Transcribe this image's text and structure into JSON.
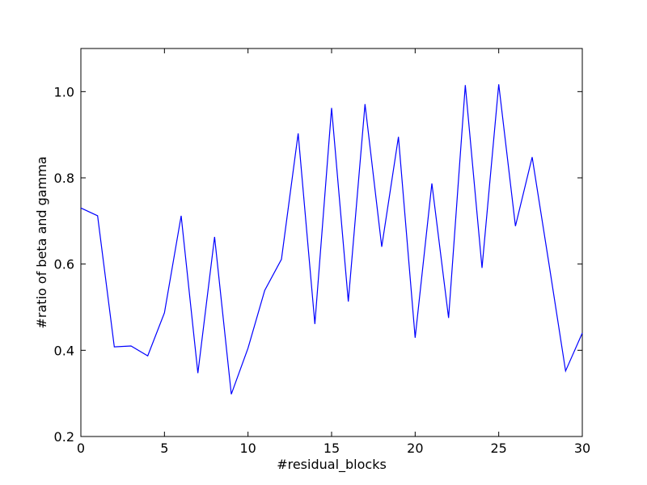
{
  "chart_data": {
    "type": "line",
    "title": "",
    "xlabel": "#residual_blocks",
    "ylabel": "#ratio of beta and gamma",
    "xlim": [
      0,
      30
    ],
    "ylim": [
      0.2,
      1.1
    ],
    "xticks": [
      0,
      5,
      10,
      15,
      20,
      25,
      30
    ],
    "xtick_labels": [
      "0",
      "5",
      "10",
      "15",
      "20",
      "25",
      "30"
    ],
    "yticks": [
      0.2,
      0.4,
      0.6,
      0.8,
      1.0
    ],
    "ytick_labels": [
      "0.2",
      "0.4",
      "0.6",
      "0.8",
      "1.0"
    ],
    "grid": false,
    "legend": "none",
    "series": [
      {
        "color": "#0000ff",
        "x": [
          0,
          1,
          2,
          3,
          4,
          5,
          6,
          7,
          8,
          9,
          10,
          11,
          12,
          13,
          14,
          15,
          16,
          17,
          18,
          19,
          20,
          21,
          22,
          23,
          24,
          25,
          26,
          27,
          28,
          29,
          30
        ],
        "y": [
          0.73,
          0.712,
          0.408,
          0.41,
          0.387,
          0.487,
          0.712,
          0.347,
          0.663,
          0.298,
          0.405,
          0.539,
          0.611,
          0.903,
          0.461,
          0.962,
          0.513,
          0.971,
          0.64,
          0.895,
          0.429,
          0.787,
          0.475,
          1.015,
          0.591,
          1.017,
          0.688,
          0.848,
          0.602,
          0.352,
          0.44
        ]
      }
    ]
  }
}
